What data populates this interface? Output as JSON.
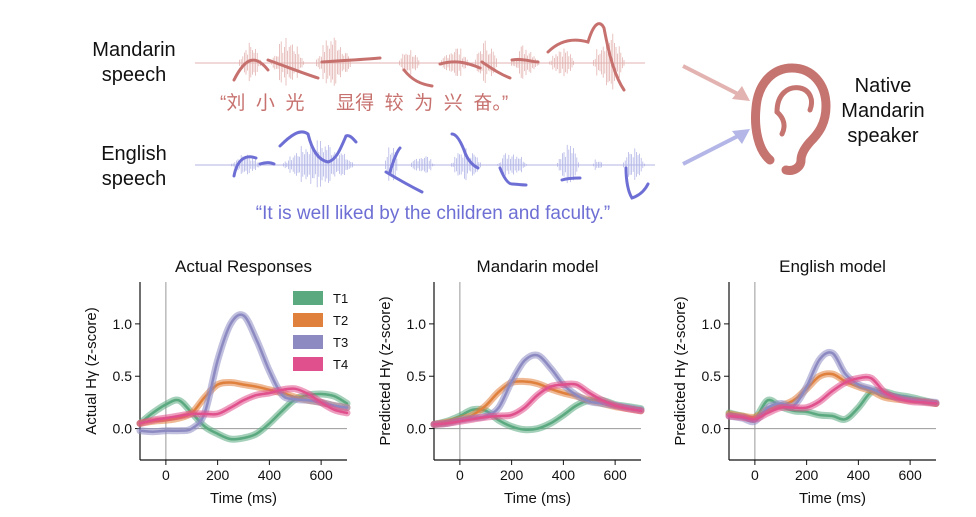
{
  "figure": {
    "mandarin_label_line1": "Mandarin",
    "mandarin_label_line2": "speech",
    "mandarin_sentence": "“刘  小  光      显得  较  为  兴  奋。”",
    "english_label_line1": "English",
    "english_label_line2": "speech",
    "english_sentence": "“It is well liked by the children and faculty.”",
    "listener_line1": "Native",
    "listener_line2": "Mandarin",
    "listener_line3": "speaker",
    "icon": "ear-icon",
    "colors": {
      "mandarin": "#c7716e",
      "mandarin_wave": "#e2b3b0",
      "english": "#6e6fd4",
      "english_wave": "#b3b6e6",
      "ear": "#c57470"
    }
  },
  "chart_data": [
    {
      "type": "line",
      "title": "Actual Responses",
      "xlabel": "Time (ms)",
      "ylabel": "Actual Hγ (z-score)",
      "xlim": [
        -100,
        700
      ],
      "ylim": [
        -0.3,
        1.4
      ],
      "xticks": [
        0,
        200,
        400,
        600
      ],
      "yticks": [
        0.0,
        0.5,
        1.0
      ],
      "vline_x": 0,
      "hline_y": 0,
      "legend": {
        "position": "top-right",
        "entries": [
          "T1",
          "T2",
          "T3",
          "T4"
        ]
      },
      "x": [
        -100,
        -50,
        0,
        50,
        100,
        150,
        200,
        250,
        300,
        350,
        400,
        450,
        500,
        550,
        600,
        650,
        700
      ],
      "series": [
        {
          "name": "T1",
          "color": "#5aa97f",
          "values": [
            0.05,
            0.15,
            0.23,
            0.27,
            0.15,
            0.02,
            -0.05,
            -0.1,
            -0.09,
            -0.05,
            0.05,
            0.17,
            0.28,
            0.32,
            0.33,
            0.31,
            0.24
          ]
        },
        {
          "name": "T2",
          "color": "#e0803d",
          "values": [
            0.05,
            0.07,
            0.08,
            0.1,
            0.15,
            0.3,
            0.42,
            0.44,
            0.42,
            0.4,
            0.37,
            0.34,
            0.3,
            0.27,
            0.25,
            0.22,
            0.2
          ]
        },
        {
          "name": "T3",
          "color": "#8d8ac2",
          "values": [
            -0.02,
            -0.03,
            -0.02,
            -0.02,
            0.0,
            0.15,
            0.65,
            1.0,
            1.08,
            0.85,
            0.55,
            0.32,
            0.28,
            0.27,
            0.25,
            0.22,
            0.2
          ]
        },
        {
          "name": "T4",
          "color": "#e0508c",
          "values": [
            0.05,
            0.08,
            0.1,
            0.12,
            0.14,
            0.14,
            0.14,
            0.2,
            0.27,
            0.32,
            0.34,
            0.37,
            0.38,
            0.33,
            0.25,
            0.18,
            0.15
          ]
        }
      ]
    },
    {
      "type": "line",
      "title": "Mandarin model",
      "xlabel": "Time (ms)",
      "ylabel": "Predicted Hγ (z-score)",
      "xlim": [
        -100,
        700
      ],
      "ylim": [
        -0.3,
        1.4
      ],
      "xticks": [
        0,
        200,
        400,
        600
      ],
      "yticks": [
        0.0,
        0.5,
        1.0
      ],
      "vline_x": 0,
      "hline_y": 0,
      "x": [
        -100,
        -50,
        0,
        50,
        100,
        150,
        200,
        250,
        300,
        350,
        400,
        450,
        500,
        550,
        600,
        650,
        700
      ],
      "series": [
        {
          "name": "T1",
          "color": "#5aa97f",
          "values": [
            0.04,
            0.07,
            0.12,
            0.18,
            0.17,
            0.08,
            0.02,
            -0.01,
            0.0,
            0.05,
            0.13,
            0.22,
            0.27,
            0.27,
            0.23,
            0.21,
            0.19
          ]
        },
        {
          "name": "T2",
          "color": "#e0803d",
          "values": [
            0.04,
            0.06,
            0.09,
            0.13,
            0.22,
            0.35,
            0.44,
            0.45,
            0.43,
            0.38,
            0.34,
            0.31,
            0.27,
            0.24,
            0.21,
            0.19,
            0.17
          ]
        },
        {
          "name": "T3",
          "color": "#8d8ac2",
          "values": [
            0.04,
            0.05,
            0.08,
            0.1,
            0.12,
            0.2,
            0.45,
            0.65,
            0.7,
            0.58,
            0.42,
            0.32,
            0.26,
            0.24,
            0.22,
            0.2,
            0.18
          ]
        },
        {
          "name": "T4",
          "color": "#e0508c",
          "values": [
            0.04,
            0.05,
            0.07,
            0.09,
            0.11,
            0.12,
            0.13,
            0.2,
            0.32,
            0.4,
            0.42,
            0.42,
            0.34,
            0.27,
            0.22,
            0.19,
            0.17
          ]
        }
      ]
    },
    {
      "type": "line",
      "title": "English model",
      "xlabel": "Time (ms)",
      "ylabel": "Predicted Hγ (z-score)",
      "xlim": [
        -100,
        700
      ],
      "ylim": [
        -0.3,
        1.4
      ],
      "xticks": [
        0,
        200,
        400,
        600
      ],
      "yticks": [
        0.0,
        0.5,
        1.0
      ],
      "vline_x": 0,
      "hline_y": 0,
      "x": [
        -100,
        -50,
        0,
        50,
        100,
        150,
        200,
        250,
        300,
        350,
        400,
        450,
        500,
        550,
        600,
        650,
        700
      ],
      "series": [
        {
          "name": "T1",
          "color": "#5aa97f",
          "values": [
            0.15,
            0.12,
            0.1,
            0.27,
            0.21,
            0.17,
            0.16,
            0.13,
            0.12,
            0.09,
            0.2,
            0.35,
            0.35,
            0.32,
            0.3,
            0.27,
            0.24
          ]
        },
        {
          "name": "T2",
          "color": "#e0803d",
          "values": [
            0.14,
            0.12,
            0.11,
            0.18,
            0.22,
            0.27,
            0.38,
            0.5,
            0.52,
            0.45,
            0.4,
            0.36,
            0.3,
            0.28,
            0.27,
            0.26,
            0.24
          ]
        },
        {
          "name": "T3",
          "color": "#8d8ac2",
          "values": [
            0.12,
            0.1,
            0.07,
            0.2,
            0.24,
            0.22,
            0.4,
            0.66,
            0.72,
            0.52,
            0.42,
            0.38,
            0.33,
            0.3,
            0.28,
            0.26,
            0.25
          ]
        },
        {
          "name": "T4",
          "color": "#e0508c",
          "values": [
            0.12,
            0.11,
            0.09,
            0.15,
            0.2,
            0.2,
            0.2,
            0.26,
            0.36,
            0.44,
            0.48,
            0.48,
            0.35,
            0.29,
            0.26,
            0.25,
            0.24
          ]
        }
      ]
    }
  ]
}
